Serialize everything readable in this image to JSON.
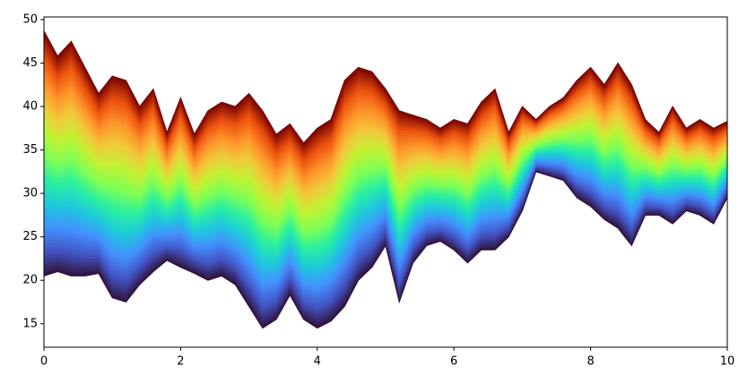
{
  "chart_data": {
    "type": "band",
    "x": [
      0,
      0.2,
      0.4,
      0.6,
      0.8,
      1,
      1.2,
      1.4,
      1.6,
      1.8,
      2,
      2.2,
      2.4,
      2.6,
      2.8,
      3,
      3.2,
      3.4,
      3.6,
      3.8,
      4,
      4.2,
      4.4,
      4.6,
      4.8,
      5,
      5.2,
      5.4,
      5.6,
      5.8,
      6,
      6.2,
      6.4,
      6.6,
      6.8,
      7,
      7.2,
      7.4,
      7.6,
      7.8,
      8,
      8.2,
      8.4,
      8.6,
      8.8,
      9,
      9.2,
      9.4,
      9.6,
      9.8,
      10
    ],
    "upper": [
      48.7,
      45.8,
      47.5,
      44.5,
      41.5,
      43.5,
      43,
      40,
      42,
      37,
      41,
      36.8,
      39.5,
      40.5,
      40,
      41.5,
      39.5,
      36.8,
      38,
      35.8,
      37.5,
      38.5,
      43,
      44.5,
      44,
      42,
      39.5,
      39,
      38.5,
      37.5,
      38.5,
      38,
      40.5,
      42,
      37,
      40,
      38.5,
      40,
      41,
      43,
      44.5,
      42.5,
      45,
      42.5,
      38.5,
      37,
      40,
      37.5,
      38.5,
      37.5,
      38.3
    ],
    "lower": [
      20.5,
      21,
      20.5,
      20.5,
      20.8,
      18,
      17.5,
      19.5,
      21,
      22.3,
      21.5,
      20.8,
      20,
      20.5,
      19.5,
      17,
      14.5,
      15.5,
      18.3,
      15.5,
      14.5,
      15.3,
      17,
      20,
      21.5,
      24,
      17.5,
      22,
      24,
      24.5,
      23.5,
      22,
      23.5,
      23.5,
      25,
      28,
      32.5,
      32,
      31.5,
      29.5,
      28.5,
      27,
      26,
      24,
      27.5,
      27.5,
      26.5,
      28,
      27.5,
      26.5,
      29.5
    ],
    "colormap": [
      "#30123b",
      "#4454c4",
      "#4490fe",
      "#1fc8de",
      "#29efa2",
      "#7dff56",
      "#c1f334",
      "#f1ca3a",
      "#fe922a",
      "#ea4f0d",
      "#7a0403"
    ],
    "xlim": [
      0,
      10
    ],
    "ylim": [
      12.3,
      50.3
    ],
    "xticks": [
      0,
      2,
      4,
      6,
      8,
      10
    ],
    "yticks": [
      15,
      20,
      25,
      30,
      35,
      40,
      45,
      50
    ]
  }
}
